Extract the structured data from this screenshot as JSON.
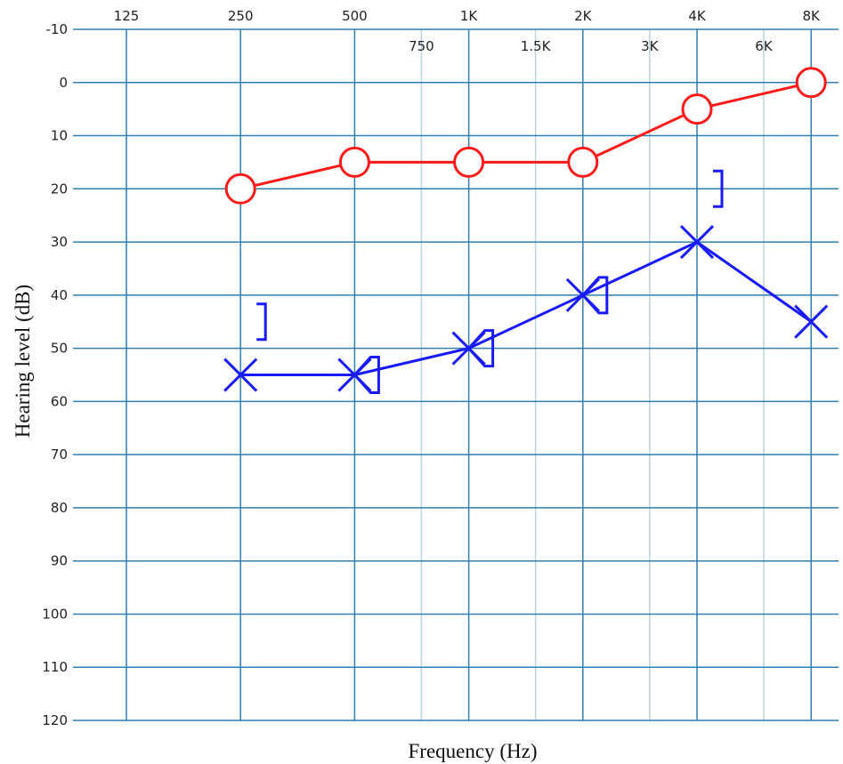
{
  "chart_data": {
    "type": "line",
    "xlabel": "Frequency (Hz)",
    "ylabel": "Hearing level (dB)",
    "x_scale": "log2",
    "y_inverted": true,
    "ylim": [
      -10,
      120
    ],
    "y_ticks": [
      -10,
      0,
      10,
      20,
      30,
      40,
      50,
      60,
      70,
      80,
      90,
      100,
      110,
      120
    ],
    "x_major_ticks": [
      {
        "freq": 125,
        "label": "125"
      },
      {
        "freq": 250,
        "label": "250"
      },
      {
        "freq": 500,
        "label": "500"
      },
      {
        "freq": 1000,
        "label": "1K"
      },
      {
        "freq": 2000,
        "label": "2K"
      },
      {
        "freq": 4000,
        "label": "4K"
      },
      {
        "freq": 8000,
        "label": "8K"
      }
    ],
    "x_minor_ticks": [
      {
        "freq": 750,
        "label": "750"
      },
      {
        "freq": 1500,
        "label": "1.5K"
      },
      {
        "freq": 3000,
        "label": "3K"
      },
      {
        "freq": 6000,
        "label": "6K"
      }
    ],
    "grid": true,
    "colors": {
      "major_grid": "#2f7fb0",
      "minor_grid": "#b9d3e4",
      "right_ear": "#ff1a1a",
      "left_ear": "#1a1aff"
    },
    "series": [
      {
        "marker": "circle",
        "color": "#ff1a1a",
        "points": [
          {
            "freq": 250,
            "db": 20
          },
          {
            "freq": 500,
            "db": 15
          },
          {
            "freq": 1000,
            "db": 15
          },
          {
            "freq": 2000,
            "db": 15
          },
          {
            "freq": 4000,
            "db": 5
          },
          {
            "freq": 8000,
            "db": 0
          }
        ]
      },
      {
        "marker": "cross",
        "color": "#1a1aff",
        "points": [
          {
            "freq": 250,
            "db": 55
          },
          {
            "freq": 500,
            "db": 55
          },
          {
            "freq": 1000,
            "db": 50
          },
          {
            "freq": 2000,
            "db": 40
          },
          {
            "freq": 4000,
            "db": 30
          },
          {
            "freq": 8000,
            "db": 45
          }
        ]
      },
      {
        "marker": "bracket-left",
        "color": "#1a1aff",
        "points": [
          {
            "freq": 500,
            "db": 55
          },
          {
            "freq": 1000,
            "db": 50
          },
          {
            "freq": 2000,
            "db": 40
          }
        ]
      },
      {
        "marker": "bracket-right",
        "color": "#1a1aff",
        "points": [
          {
            "freq": 250,
            "db": 45
          },
          {
            "freq": 4000,
            "db": 20
          }
        ]
      }
    ]
  }
}
